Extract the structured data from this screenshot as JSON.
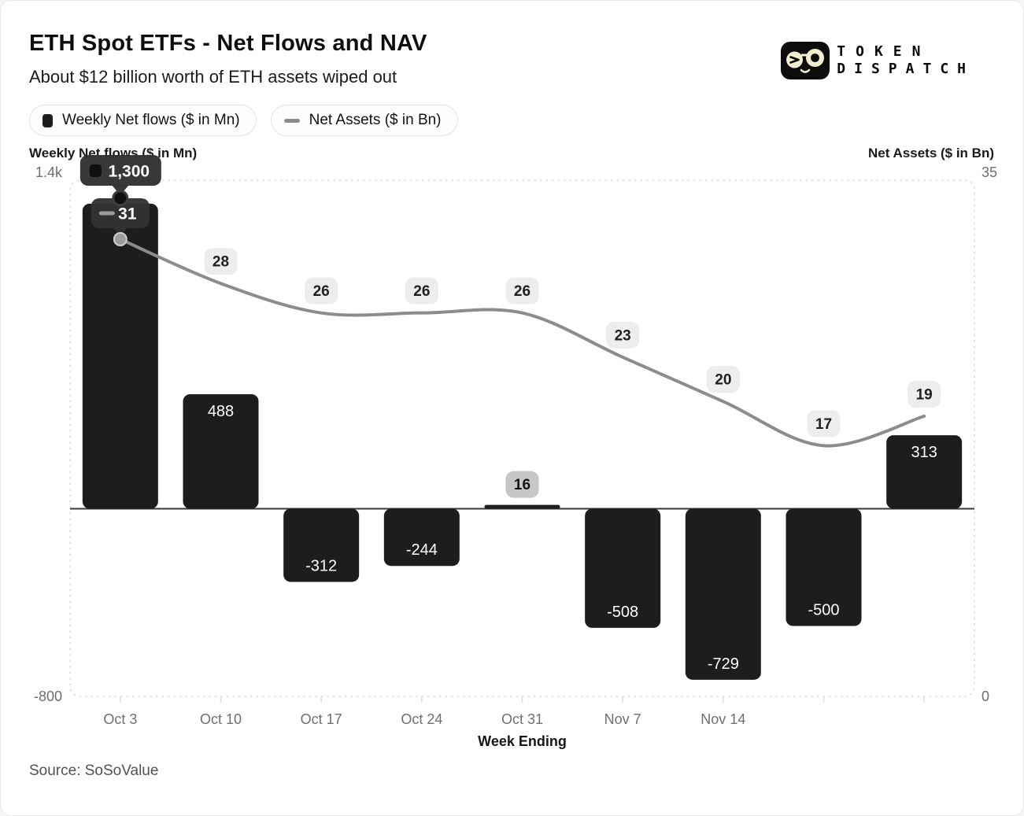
{
  "header": {
    "title": "ETH Spot ETFs - Net Flows and NAV",
    "subtitle": "About $12 billion worth of ETH assets wiped out"
  },
  "logo": {
    "line1": "TOKEN",
    "line2": "DISPATCH"
  },
  "legend": {
    "items": [
      {
        "label": "Weekly Net flows ($ in Mn)",
        "marker": "bar-swatch"
      },
      {
        "label": "Net Assets ($ in Bn)",
        "marker": "line-dash"
      }
    ]
  },
  "axes": {
    "left_title": "Weekly Net flows ($ in Mn)",
    "right_title": "Net Assets ($ in Bn)",
    "left_top_tick": "1.4k",
    "left_bottom_tick": "-800",
    "right_top_tick": "35",
    "right_bottom_tick": "0",
    "x_title": "Week Ending"
  },
  "source": "Source: SoSoValue",
  "chart_data": {
    "type": "bar+line combo",
    "categories": [
      "Oct 3",
      "Oct 10",
      "Oct 17",
      "Oct 24",
      "Oct 31",
      "Nov 7",
      "Nov 14",
      "",
      ""
    ],
    "series": [
      {
        "name": "Weekly Net flows ($ in Mn)",
        "type": "bar",
        "axis": "left",
        "values": [
          1300,
          488,
          -312,
          -244,
          16,
          -508,
          -729,
          -500,
          313
        ],
        "labels": [
          "1,300",
          "488",
          "-312",
          "-244",
          "16",
          "-508",
          "-729",
          "-500",
          "313"
        ]
      },
      {
        "name": "Net Assets ($ in Bn)",
        "type": "line",
        "axis": "right",
        "values": [
          31,
          28,
          26,
          26,
          26,
          23,
          20,
          17,
          19
        ]
      }
    ],
    "left_axis": {
      "min": -800,
      "max": 1400
    },
    "right_axis": {
      "min": 0,
      "max": 35
    },
    "tooltip": {
      "index": 0,
      "bar_label": "1,300",
      "line_label": "31"
    },
    "legend_position": "top-left",
    "grid": "dashed plot border only",
    "colors": {
      "bar": "#1d1d1f",
      "line": "#8c8c8c",
      "line_label_bg": "#ededee",
      "line_label_text": "#202023",
      "small_bar_badge_bg": "#c5c7c9",
      "tooltip_bg": "#323234",
      "tooltip_text": "#ffffff",
      "zero_line": "#38383a",
      "plot_border": "#dbdbdb",
      "tick_text": "#6f6f6f",
      "bar_label_text": "#ffffff"
    }
  }
}
